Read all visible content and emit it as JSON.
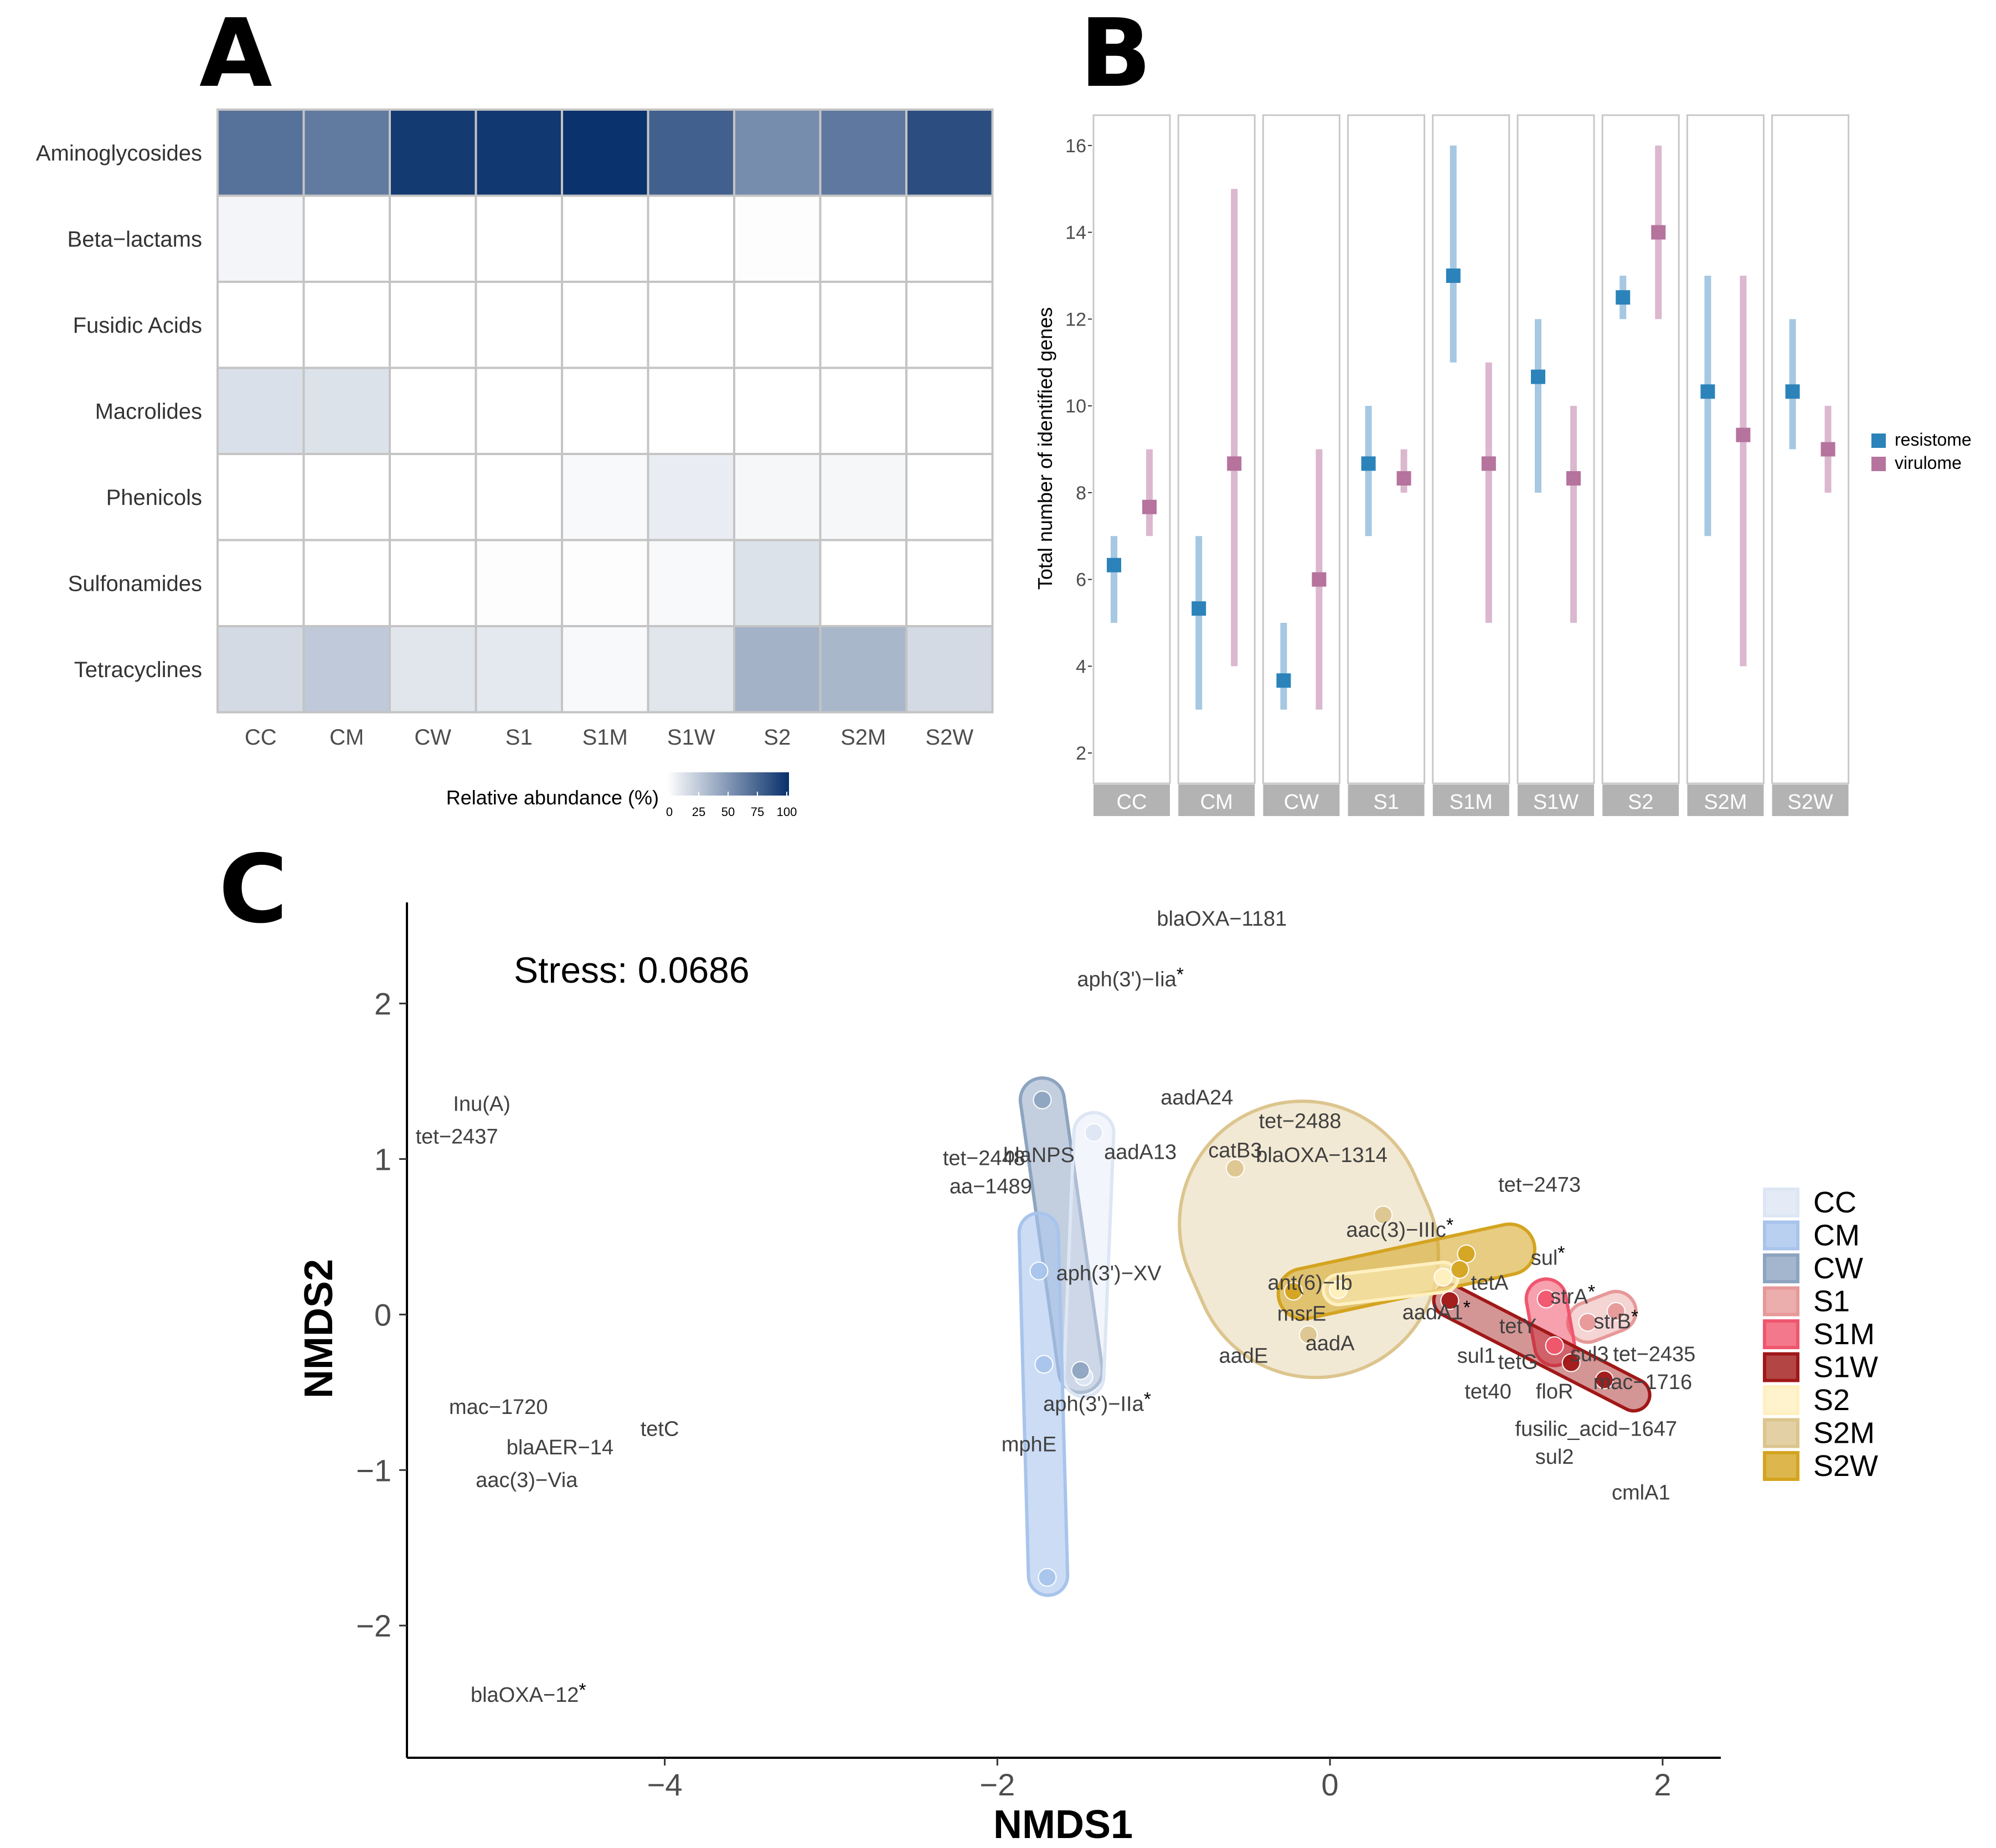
{
  "panel_labels": {
    "a": "A",
    "b": "B",
    "c": "C"
  },
  "colors": {
    "heat_low": "#ffffff",
    "heat_high": "#08306b",
    "resistome": "#2b83ba",
    "resistome_light": "#a6c8e2",
    "virulome": "#b5739d",
    "virulome_light": "#dbb8cf",
    "strip": "#b3b3b3",
    "group": {
      "CC": "#dde6f4",
      "CM": "#a8c4ec",
      "CW": "#8da4c0",
      "S1": "#e79898",
      "S1M": "#f0566e",
      "S1W": "#a11717",
      "S2": "#fff0c0",
      "S2M": "#dcc58e",
      "S2W": "#d4a420"
    }
  },
  "chart_data": [
    {
      "type": "heatmap",
      "title": "",
      "xlabel": "",
      "ylabel": "",
      "rows": [
        "Aminoglycosides",
        "Beta−lactams",
        "Fusidic Acids",
        "Macrolides",
        "Phenicols",
        "Sulfonamides",
        "Tetracyclines"
      ],
      "columns": [
        "CC",
        "CM",
        "CW",
        "S1",
        "S1M",
        "S1W",
        "S2",
        "S2M",
        "S2W"
      ],
      "values": [
        [
          68,
          64,
          95,
          96,
          99,
          77,
          55,
          65,
          86
        ],
        [
          5,
          0,
          0,
          0,
          0,
          0,
          1,
          0,
          0
        ],
        [
          0,
          0,
          0,
          0,
          0,
          0,
          0,
          0,
          0
        ],
        [
          15,
          14,
          0,
          0,
          0,
          0,
          0,
          0,
          0
        ],
        [
          0,
          0,
          0,
          0,
          3,
          9,
          4,
          4,
          0
        ],
        [
          0,
          0,
          0,
          1,
          1,
          3,
          14,
          0,
          0
        ],
        [
          18,
          26,
          12,
          11,
          3,
          12,
          37,
          35,
          18
        ]
      ],
      "legend": {
        "title": "Relative abundance (%)",
        "ticks": [
          "0",
          "25",
          "50",
          "75",
          "100"
        ]
      }
    },
    {
      "type": "scatter",
      "title": "",
      "xlabel": "",
      "ylabel": "Total number of identified genes",
      "ylim": [
        1.3,
        16.7
      ],
      "yticks": [
        "2",
        "4",
        "6",
        "8",
        "10",
        "12",
        "14",
        "16"
      ],
      "facets": [
        "CC",
        "CM",
        "CW",
        "S1",
        "S1M",
        "S1W",
        "S2",
        "S2M",
        "S2W"
      ],
      "series": [
        {
          "name": "resistome",
          "mean": [
            6.33,
            5.33,
            3.67,
            8.67,
            13.0,
            10.67,
            12.5,
            10.33,
            10.33
          ],
          "low": [
            5,
            3,
            3,
            7,
            11,
            8,
            12,
            7,
            9
          ],
          "high": [
            7,
            7,
            5,
            10,
            16,
            12,
            13,
            13,
            12
          ]
        },
        {
          "name": "virulome",
          "mean": [
            7.67,
            8.67,
            6.0,
            8.33,
            8.67,
            8.33,
            14.0,
            9.33,
            9.0
          ],
          "low": [
            7,
            4,
            3,
            8,
            5,
            5,
            12,
            4,
            8
          ],
          "high": [
            9,
            15,
            9,
            9,
            11,
            10,
            16,
            13,
            10
          ]
        }
      ],
      "legend": [
        "resistome",
        "virulome"
      ]
    },
    {
      "type": "scatter",
      "title": "",
      "xlabel": "NMDS1",
      "ylabel": "NMDS2",
      "xlim": [
        -5.55,
        2.35
      ],
      "ylim": [
        -2.85,
        2.65
      ],
      "xticks": [
        "−4",
        "−2",
        "0",
        "2"
      ],
      "yticks": [
        "−2",
        "−1",
        "0",
        "1",
        "2"
      ],
      "stress_label": "Stress:  0.0686",
      "groups": [
        "CC",
        "CM",
        "CW",
        "S1",
        "S1M",
        "S1W",
        "S2",
        "S2M",
        "S2W"
      ],
      "sites": [
        {
          "group": "CC",
          "x": -1.42,
          "y": 1.17
        },
        {
          "group": "CC",
          "x": -1.48,
          "y": -0.4
        },
        {
          "group": "CM",
          "x": -1.75,
          "y": 0.28
        },
        {
          "group": "CM",
          "x": -1.72,
          "y": -0.32
        },
        {
          "group": "CM",
          "x": -1.7,
          "y": -1.69
        },
        {
          "group": "CW",
          "x": -1.73,
          "y": 1.38
        },
        {
          "group": "CW",
          "x": -1.5,
          "y": -0.36
        },
        {
          "group": "S1",
          "x": 1.55,
          "y": -0.05
        },
        {
          "group": "S1",
          "x": 1.72,
          "y": 0.02
        },
        {
          "group": "S1M",
          "x": 1.3,
          "y": 0.1
        },
        {
          "group": "S1M",
          "x": 1.35,
          "y": -0.2
        },
        {
          "group": "S1W",
          "x": 0.72,
          "y": 0.09
        },
        {
          "group": "S1W",
          "x": 1.45,
          "y": -0.31
        },
        {
          "group": "S1W",
          "x": 1.65,
          "y": -0.42
        },
        {
          "group": "S2",
          "x": 0.68,
          "y": 0.24
        },
        {
          "group": "S2",
          "x": 0.05,
          "y": 0.16
        },
        {
          "group": "S2M",
          "x": -0.57,
          "y": 0.94
        },
        {
          "group": "S2M",
          "x": 0.32,
          "y": 0.64
        },
        {
          "group": "S2M",
          "x": -0.13,
          "y": -0.13
        },
        {
          "group": "S2W",
          "x": 0.82,
          "y": 0.39
        },
        {
          "group": "S2W",
          "x": 0.78,
          "y": 0.29
        },
        {
          "group": "S2W",
          "x": -0.22,
          "y": 0.15
        }
      ],
      "gene_labels": [
        {
          "text": "blaOXA−1181",
          "x": -0.65,
          "y": 2.5
        },
        {
          "text": "aph(3')−Iia",
          "x": -1.2,
          "y": 2.11,
          "star": true
        },
        {
          "text": "Inu(A)",
          "x": -5.1,
          "y": 1.31
        },
        {
          "text": "tet−2437",
          "x": -5.25,
          "y": 1.1
        },
        {
          "text": "aadA24",
          "x": -0.8,
          "y": 1.35
        },
        {
          "text": "tet−2488",
          "x": -0.18,
          "y": 1.2
        },
        {
          "text": "catB3",
          "x": -0.57,
          "y": 1.01
        },
        {
          "text": "blaOXA−1314",
          "x": -0.05,
          "y": 0.98
        },
        {
          "text": "tet−2448",
          "x": -2.08,
          "y": 0.96
        },
        {
          "text": "blaNPS",
          "x": -1.75,
          "y": 0.98
        },
        {
          "text": "aadA13",
          "x": -1.14,
          "y": 1.0
        },
        {
          "text": "aa−1489",
          "x": -2.04,
          "y": 0.78
        },
        {
          "text": "tet−2473",
          "x": 1.26,
          "y": 0.79
        },
        {
          "text": "aac(3)−IIIc",
          "x": 0.42,
          "y": 0.5,
          "star": true
        },
        {
          "text": "sul",
          "x": 1.31,
          "y": 0.32,
          "star": true
        },
        {
          "text": "aph(3')−XV",
          "x": -1.33,
          "y": 0.22
        },
        {
          "text": "ant(6)−Ib",
          "x": -0.12,
          "y": 0.16
        },
        {
          "text": "tetA",
          "x": 0.96,
          "y": 0.16
        },
        {
          "text": "strA",
          "x": 1.46,
          "y": 0.07,
          "star": true
        },
        {
          "text": "msrE",
          "x": -0.17,
          "y": -0.04
        },
        {
          "text": "aadA1",
          "x": 0.64,
          "y": -0.03,
          "star": true
        },
        {
          "text": "strB",
          "x": 1.72,
          "y": -0.09,
          "star": true
        },
        {
          "text": "tetY",
          "x": 1.13,
          "y": -0.12
        },
        {
          "text": "aadA",
          "x": 0.0,
          "y": -0.23
        },
        {
          "text": "aadE",
          "x": -0.52,
          "y": -0.31
        },
        {
          "text": "sul1",
          "x": 0.88,
          "y": -0.31
        },
        {
          "text": "tetG",
          "x": 1.13,
          "y": -0.35
        },
        {
          "text": "sul3",
          "x": 1.56,
          "y": -0.3
        },
        {
          "text": "tet−2435",
          "x": 1.95,
          "y": -0.3
        },
        {
          "text": "mac−1716",
          "x": 1.88,
          "y": -0.48
        },
        {
          "text": "tet40",
          "x": 0.95,
          "y": -0.54
        },
        {
          "text": "floR",
          "x": 1.35,
          "y": -0.54
        },
        {
          "text": "mac−1720",
          "x": -5.0,
          "y": -0.64
        },
        {
          "text": "aph(3')−IIa",
          "x": -1.4,
          "y": -0.62,
          "star": true
        },
        {
          "text": "tetC",
          "x": -4.03,
          "y": -0.78
        },
        {
          "text": "fusilic_acid−1647",
          "x": 1.6,
          "y": -0.78
        },
        {
          "text": "blaAER−14",
          "x": -4.63,
          "y": -0.9
        },
        {
          "text": "mphE",
          "x": -1.81,
          "y": -0.88
        },
        {
          "text": "sul2",
          "x": 1.35,
          "y": -0.96
        },
        {
          "text": "aac(3)−Via",
          "x": -4.83,
          "y": -1.11
        },
        {
          "text": "cmlA1",
          "x": 1.87,
          "y": -1.19
        },
        {
          "text": "blaOXA−12",
          "x": -4.82,
          "y": -2.49,
          "star": true
        }
      ]
    }
  ]
}
